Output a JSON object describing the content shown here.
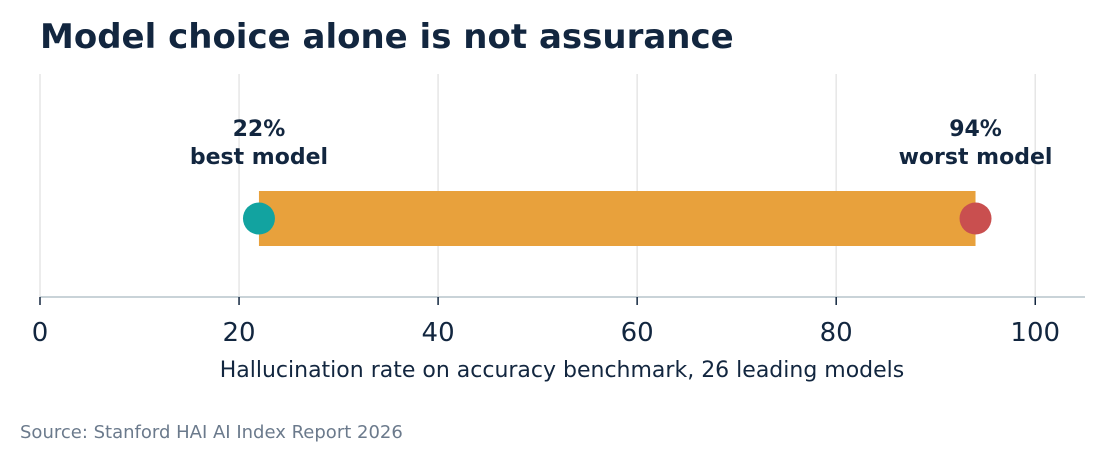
{
  "chart_data": {
    "type": "bar",
    "title": "Model choice alone is not assurance",
    "xlabel": "Hallucination rate on accuracy benchmark, 26 leading models",
    "xlim": [
      0,
      105
    ],
    "xticks": [
      0,
      20,
      40,
      60,
      80,
      100
    ],
    "grid": true,
    "range": {
      "min": 22,
      "max": 94
    },
    "annotations": [
      {
        "x": 22,
        "value_label": "22%",
        "text": "best model"
      },
      {
        "x": 94,
        "value_label": "94%",
        "text": "worst model"
      }
    ],
    "source": "Source: Stanford HAI AI Index Report 2026"
  },
  "colors": {
    "bar": "#e8a13c",
    "best_dot": "#12a3a0",
    "worst_dot": "#c94f4f",
    "grid": "#e6e6e6",
    "axis": "#c9d3d8",
    "text": "#12263f"
  }
}
